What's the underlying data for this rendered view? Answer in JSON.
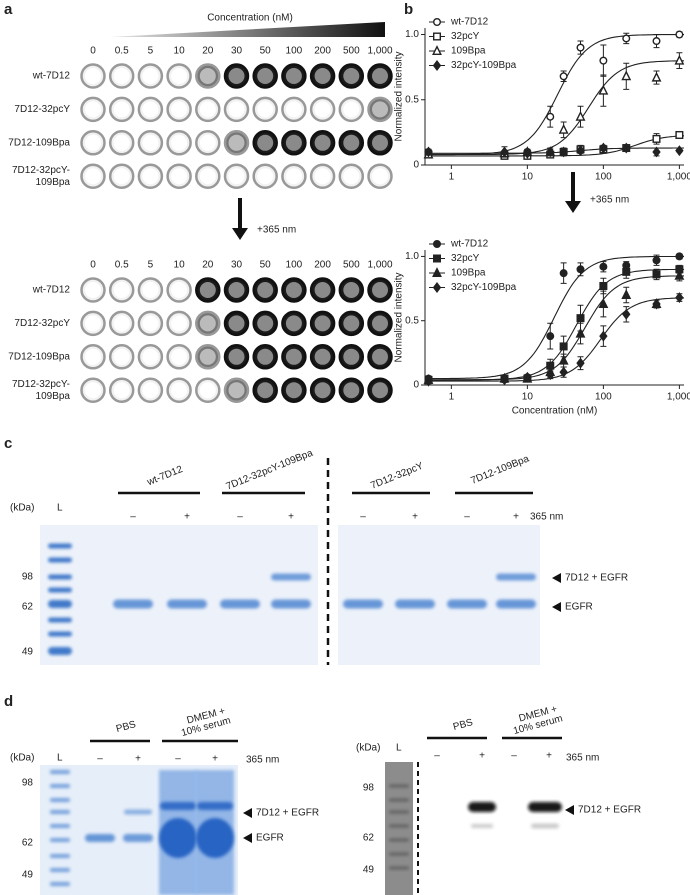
{
  "panel_labels": [
    "a",
    "b",
    "c",
    "d"
  ],
  "panel_a": {
    "gradient_label": "Concentration (nM)",
    "concentrations": [
      "0",
      "0.5",
      "5",
      "10",
      "20",
      "30",
      "50",
      "100",
      "200",
      "500",
      "1,000"
    ],
    "rows": [
      [
        "wt-7D12"
      ],
      [
        "7D12-32pcY"
      ],
      [
        "7D12-109Bpa"
      ],
      [
        "7D12-32pcY-",
        "109Bpa"
      ]
    ],
    "treatment": "+365 nm"
  },
  "panel_b_treatment": "+365 nm",
  "chart_data": [
    {
      "type": "scatter",
      "curve": "sigmoid",
      "x_log": true,
      "ylabel": "Normalized intensity",
      "x": [
        0.5,
        5,
        10,
        20,
        30,
        50,
        100,
        200,
        500,
        1000
      ],
      "xlim": [
        0.45,
        1150
      ],
      "xticks": [
        1,
        10,
        100,
        {
          "value": 1000,
          "label": "1,000"
        }
      ],
      "ylim": [
        0,
        1.05
      ],
      "yticks": [
        0,
        0.5,
        {
          "value": 1,
          "label": "1.0"
        }
      ],
      "legend": "top-left",
      "series": [
        {
          "name": "wt-7D12",
          "color": "#222222",
          "marker": "circle",
          "filled": false,
          "values": [
            0.1,
            0.08,
            0.1,
            0.37,
            0.68,
            0.9,
            0.8,
            0.97,
            0.95,
            1.0
          ],
          "errors": [
            0.02,
            0.02,
            0.02,
            0.08,
            0.04,
            0.05,
            0.12,
            0.04,
            0.05,
            0.02
          ]
        },
        {
          "name": "32pcY",
          "color": "#222222",
          "marker": "square",
          "filled": false,
          "values": [
            0.08,
            0.07,
            0.07,
            0.08,
            0.1,
            0.12,
            0.12,
            0.13,
            0.2,
            0.23
          ],
          "errors": [
            0.02,
            0.02,
            0.02,
            0.02,
            0.03,
            0.03,
            0.03,
            0.02,
            0.04,
            0.02
          ]
        },
        {
          "name": "109Bpa",
          "color": "#222222",
          "marker": "triangle",
          "filled": false,
          "values": [
            0.08,
            0.09,
            0.1,
            0.1,
            0.27,
            0.37,
            0.57,
            0.68,
            0.67,
            0.8
          ],
          "errors": [
            0.02,
            0.02,
            0.02,
            0.03,
            0.06,
            0.08,
            0.12,
            0.1,
            0.05,
            0.06
          ]
        },
        {
          "name": "32pcY-109Bpa",
          "color": "#222222",
          "marker": "diamond",
          "filled": true,
          "values": [
            0.1,
            0.1,
            0.09,
            0.1,
            0.1,
            0.11,
            0.13,
            0.13,
            0.1,
            0.11
          ],
          "errors": [
            0.02,
            0.04,
            0.02,
            0.02,
            0.02,
            0.02,
            0.02,
            0.02,
            0.03,
            0.01
          ]
        }
      ]
    },
    {
      "type": "scatter",
      "curve": "sigmoid",
      "x_log": true,
      "ylabel": "Normalized intensity",
      "xlabel": "Concentration (nM)",
      "x": [
        0.5,
        5,
        10,
        20,
        30,
        50,
        100,
        200,
        500,
        1000
      ],
      "xlim": [
        0.45,
        1150
      ],
      "xticks": [
        1,
        10,
        100,
        {
          "value": 1000,
          "label": "1,000"
        }
      ],
      "ylim": [
        0,
        1.05
      ],
      "yticks": [
        0,
        0.5,
        {
          "value": 1,
          "label": "1.0"
        }
      ],
      "legend": "top-left",
      "series": [
        {
          "name": "wt-7D12",
          "color": "#222222",
          "marker": "circle",
          "filled": true,
          "values": [
            0.05,
            0.05,
            0.06,
            0.38,
            0.87,
            0.9,
            0.92,
            0.93,
            0.97,
            1.0
          ],
          "errors": [
            0.02,
            0.02,
            0.02,
            0.1,
            0.08,
            0.05,
            0.04,
            0.03,
            0.04,
            0.02
          ]
        },
        {
          "name": "32pcY",
          "color": "#222222",
          "marker": "square",
          "filled": true,
          "values": [
            0.04,
            0.05,
            0.05,
            0.15,
            0.3,
            0.52,
            0.77,
            0.88,
            0.86,
            0.9
          ],
          "errors": [
            0.02,
            0.02,
            0.02,
            0.05,
            0.08,
            0.1,
            0.06,
            0.05,
            0.04,
            0.03
          ]
        },
        {
          "name": "109Bpa",
          "color": "#222222",
          "marker": "triangle",
          "filled": true,
          "values": [
            0.04,
            0.05,
            0.05,
            0.1,
            0.19,
            0.4,
            0.63,
            0.7,
            0.63,
            0.85
          ],
          "errors": [
            0.02,
            0.02,
            0.02,
            0.04,
            0.05,
            0.08,
            0.1,
            0.06,
            0.03,
            0.04
          ]
        },
        {
          "name": "32pcY-109Bpa",
          "color": "#222222",
          "marker": "diamond",
          "filled": true,
          "values": [
            0.03,
            0.04,
            0.06,
            0.08,
            0.1,
            0.17,
            0.38,
            0.55,
            0.63,
            0.68
          ],
          "errors": [
            0.02,
            0.02,
            0.02,
            0.03,
            0.04,
            0.05,
            0.08,
            0.06,
            0.03,
            0.03
          ]
        }
      ]
    }
  ],
  "panel_c": {
    "unit": "(kDa)",
    "ladder": "L",
    "groups": [
      "wt-7D12",
      "7D12-32pcY-109Bpa",
      "7D12-32pcY",
      "7D12-109Bpa"
    ],
    "signs": [
      "–",
      "+"
    ],
    "treatment": "365 nm",
    "markers": [
      "98",
      "62",
      "49"
    ],
    "band_labels": [
      "7D12 + EGFR",
      "EGFR"
    ]
  },
  "panel_d": {
    "left": {
      "unit": "(kDa)",
      "ladder": "L",
      "groups": [
        [
          "PBS"
        ],
        [
          "DMEM +",
          "10% serum"
        ]
      ],
      "signs": [
        "–",
        "+"
      ],
      "treatment": "365 nm",
      "markers": [
        "98",
        "62",
        "49"
      ],
      "band_labels": [
        "7D12 + EGFR",
        "EGFR"
      ]
    },
    "right": {
      "unit": "(kDa)",
      "ladder": "L",
      "groups": [
        [
          "PBS"
        ],
        [
          "DMEM +",
          "10% serum"
        ]
      ],
      "signs": [
        "–",
        "+"
      ],
      "treatment": "365 nm",
      "markers": [
        "98",
        "62",
        "49"
      ],
      "band_labels": [
        "7D12 + EGFR"
      ]
    }
  }
}
